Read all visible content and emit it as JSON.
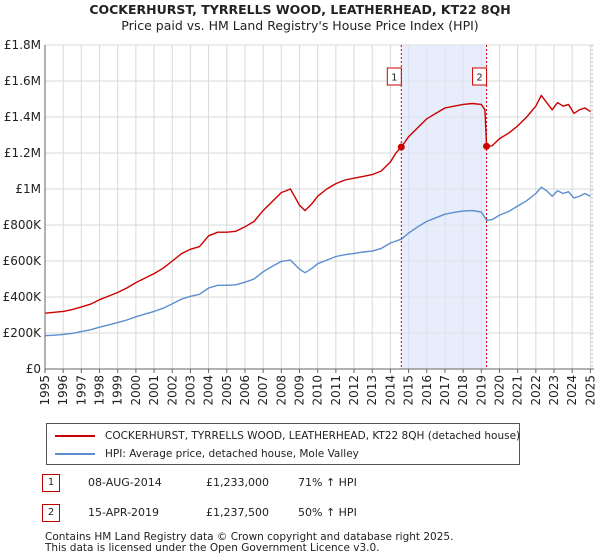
{
  "chart_data": {
    "type": "line",
    "title": "COCKERHURST, TYRRELLS WOOD, LEATHERHEAD, KT22 8QH",
    "subtitle": "Price paid vs. HM Land Registry's House Price Index (HPI)",
    "xlim": [
      1995,
      2025.2
    ],
    "ylim": [
      0,
      1800000
    ],
    "y_ticks": [
      0,
      200000,
      400000,
      600000,
      800000,
      1000000,
      1200000,
      1400000,
      1600000,
      1800000
    ],
    "y_tick_labels": [
      "£0",
      "£200K",
      "£400K",
      "£600K",
      "£800K",
      "£1M",
      "£1.2M",
      "£1.4M",
      "£1.6M",
      "£1.8M"
    ],
    "x_ticks": [
      1995,
      1996,
      1997,
      1998,
      1999,
      2000,
      2001,
      2002,
      2003,
      2004,
      2005,
      2006,
      2007,
      2008,
      2009,
      2010,
      2011,
      2012,
      2013,
      2014,
      2015,
      2016,
      2017,
      2018,
      2019,
      2020,
      2021,
      2022,
      2023,
      2024,
      2025
    ],
    "x_tick_labels": [
      "1995",
      "1996",
      "1997",
      "1998",
      "1999",
      "2000",
      "2001",
      "2002",
      "2003",
      "2004",
      "2005",
      "2006",
      "2007",
      "2008",
      "2009",
      "2010",
      "2011",
      "2012",
      "2013",
      "2014",
      "2015",
      "2016",
      "2017",
      "2018",
      "2019",
      "2020",
      "2021",
      "2022",
      "2023",
      "2024",
      "2025"
    ],
    "grid": true,
    "shaded_period": [
      2014.6,
      2019.29
    ],
    "series": [
      {
        "name": "COCKERHURST, TYRRELLS WOOD, LEATHERHEAD, KT22 8QH (detached house)",
        "color": "#cc0000",
        "x": [
          1995,
          1995.5,
          1996,
          1996.5,
          1997,
          1997.5,
          1998,
          1998.5,
          1999,
          1999.5,
          2000,
          2000.5,
          2001,
          2001.5,
          2002,
          2002.5,
          2003,
          2003.5,
          2004,
          2004.5,
          2005,
          2005.5,
          2006,
          2006.5,
          2007,
          2007.5,
          2008,
          2008.5,
          2009,
          2009.3,
          2009.7,
          2010,
          2010.5,
          2011,
          2011.5,
          2012,
          2012.5,
          2013,
          2013.5,
          2014,
          2014.3,
          2014.6,
          2015,
          2015.5,
          2016,
          2016.5,
          2017,
          2017.5,
          2018,
          2018.5,
          2019.0,
          2019.2,
          2019.29,
          2019.6,
          2020,
          2020.5,
          2021,
          2021.5,
          2022,
          2022.3,
          2022.6,
          2022.9,
          2023.2,
          2023.5,
          2023.8,
          2024.1,
          2024.4,
          2024.7,
          2025.0
        ],
        "values": [
          310000,
          315000,
          320000,
          330000,
          345000,
          360000,
          385000,
          405000,
          425000,
          450000,
          480000,
          505000,
          530000,
          560000,
          600000,
          640000,
          665000,
          680000,
          740000,
          760000,
          760000,
          765000,
          790000,
          820000,
          880000,
          930000,
          980000,
          1000000,
          910000,
          880000,
          920000,
          960000,
          1000000,
          1030000,
          1050000,
          1060000,
          1070000,
          1080000,
          1100000,
          1150000,
          1200000,
          1233000,
          1290000,
          1340000,
          1390000,
          1420000,
          1450000,
          1460000,
          1470000,
          1475000,
          1470000,
          1440000,
          1237500,
          1240000,
          1280000,
          1310000,
          1350000,
          1400000,
          1460000,
          1520000,
          1480000,
          1440000,
          1480000,
          1460000,
          1470000,
          1420000,
          1440000,
          1450000,
          1430000
        ]
      },
      {
        "name": "HPI: Average price, detached house, Mole Valley",
        "color": "#5b8fd0",
        "x": [
          1995,
          1995.5,
          1996,
          1996.5,
          1997,
          1997.5,
          1998,
          1998.5,
          1999,
          1999.5,
          2000,
          2000.5,
          2001,
          2001.5,
          2002,
          2002.5,
          2003,
          2003.5,
          2004,
          2004.5,
          2005,
          2005.5,
          2006,
          2006.5,
          2007,
          2007.5,
          2008,
          2008.5,
          2009,
          2009.3,
          2009.7,
          2010,
          2010.5,
          2011,
          2011.5,
          2012,
          2012.5,
          2013,
          2013.5,
          2014,
          2014.6,
          2015,
          2015.5,
          2016,
          2016.5,
          2017,
          2017.5,
          2018,
          2018.5,
          2019.0,
          2019.29,
          2019.6,
          2020,
          2020.5,
          2021,
          2021.5,
          2022,
          2022.3,
          2022.6,
          2022.9,
          2023.2,
          2023.5,
          2023.8,
          2024.1,
          2024.4,
          2024.7,
          2025.0
        ],
        "values": [
          185000,
          188000,
          192000,
          198000,
          208000,
          218000,
          232000,
          245000,
          258000,
          272000,
          290000,
          305000,
          320000,
          338000,
          362000,
          388000,
          404000,
          415000,
          450000,
          465000,
          465000,
          468000,
          482000,
          500000,
          540000,
          570000,
          598000,
          605000,
          555000,
          535000,
          560000,
          585000,
          605000,
          625000,
          635000,
          642000,
          650000,
          655000,
          670000,
          700000,
          721000,
          755000,
          790000,
          820000,
          840000,
          860000,
          870000,
          878000,
          880000,
          872000,
          826000,
          830000,
          855000,
          875000,
          905000,
          935000,
          975000,
          1010000,
          990000,
          960000,
          990000,
          975000,
          985000,
          950000,
          960000,
          975000,
          960000
        ]
      }
    ],
    "markers": [
      {
        "label": "1",
        "x": 2014.6,
        "y": 1233000
      },
      {
        "label": "2",
        "x": 2019.29,
        "y": 1237500
      }
    ]
  },
  "legend": {
    "property_label": "COCKERHURST, TYRRELLS WOOD, LEATHERHEAD, KT22 8QH (detached house)",
    "hpi_label": "HPI: Average price, detached house, Mole Valley"
  },
  "sales": [
    {
      "badge": "1",
      "date": "08-AUG-2014",
      "price": "£1,233,000",
      "hpi": "71% ↑ HPI"
    },
    {
      "badge": "2",
      "date": "15-APR-2019",
      "price": "£1,237,500",
      "hpi": "50% ↑ HPI"
    }
  ],
  "footer": {
    "line1": "Contains HM Land Registry data © Crown copyright and database right 2025.",
    "line2": "This data is licensed under the Open Government Licence v3.0."
  }
}
